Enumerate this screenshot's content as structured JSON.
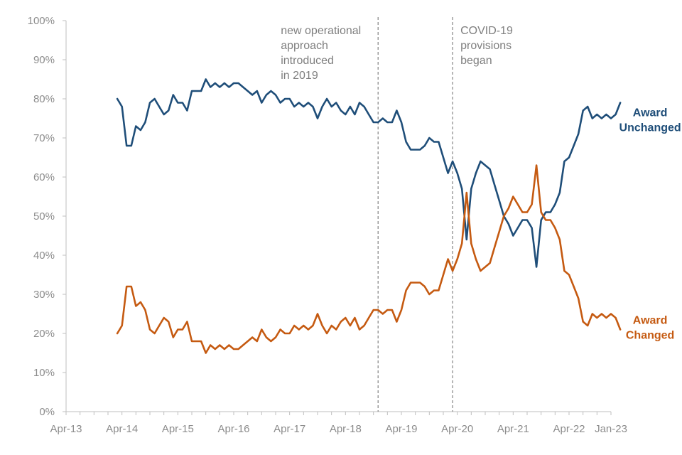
{
  "chart_data": {
    "type": "line",
    "title": "",
    "xlabel": "",
    "ylabel": "",
    "x_tick_labels": [
      "Apr-13",
      "Apr-14",
      "Apr-15",
      "Apr-16",
      "Apr-17",
      "Apr-18",
      "Apr-19",
      "Apr-20",
      "Apr-21",
      "Apr-22",
      "Jan-23"
    ],
    "y_tick_labels": [
      "0%",
      "10%",
      "20%",
      "30%",
      "40%",
      "50%",
      "60%",
      "70%",
      "80%",
      "90%",
      "100%"
    ],
    "ylim": [
      0,
      100
    ],
    "xlim": [
      "2013-04",
      "2023-01"
    ],
    "grid": false,
    "annotations": [
      {
        "date": "2018-11",
        "lines": [
          "new operational",
          "approach",
          "introduced",
          "in 2019"
        ]
      },
      {
        "date": "2020-03",
        "lines": [
          "COVID-19",
          "provisions",
          "began"
        ]
      }
    ],
    "series": [
      {
        "name": "Award Unchanged",
        "label_lines": [
          "Award",
          "Unchanged"
        ],
        "color": "#1f4e79",
        "points": [
          [
            "2014-03",
            80
          ],
          [
            "2014-04",
            78
          ],
          [
            "2014-05",
            68
          ],
          [
            "2014-06",
            68
          ],
          [
            "2014-07",
            73
          ],
          [
            "2014-08",
            72
          ],
          [
            "2014-09",
            74
          ],
          [
            "2014-10",
            79
          ],
          [
            "2014-11",
            80
          ],
          [
            "2014-12",
            78
          ],
          [
            "2015-01",
            76
          ],
          [
            "2015-02",
            77
          ],
          [
            "2015-03",
            81
          ],
          [
            "2015-04",
            79
          ],
          [
            "2015-05",
            79
          ],
          [
            "2015-06",
            77
          ],
          [
            "2015-07",
            82
          ],
          [
            "2015-08",
            82
          ],
          [
            "2015-09",
            82
          ],
          [
            "2015-10",
            85
          ],
          [
            "2015-11",
            83
          ],
          [
            "2015-12",
            84
          ],
          [
            "2016-01",
            83
          ],
          [
            "2016-02",
            84
          ],
          [
            "2016-03",
            83
          ],
          [
            "2016-04",
            84
          ],
          [
            "2016-05",
            84
          ],
          [
            "2016-06",
            83
          ],
          [
            "2016-07",
            82
          ],
          [
            "2016-08",
            81
          ],
          [
            "2016-09",
            82
          ],
          [
            "2016-10",
            79
          ],
          [
            "2016-11",
            81
          ],
          [
            "2016-12",
            82
          ],
          [
            "2017-01",
            81
          ],
          [
            "2017-02",
            79
          ],
          [
            "2017-03",
            80
          ],
          [
            "2017-04",
            80
          ],
          [
            "2017-05",
            78
          ],
          [
            "2017-06",
            79
          ],
          [
            "2017-07",
            78
          ],
          [
            "2017-08",
            79
          ],
          [
            "2017-09",
            78
          ],
          [
            "2017-10",
            75
          ],
          [
            "2017-11",
            78
          ],
          [
            "2017-12",
            80
          ],
          [
            "2018-01",
            78
          ],
          [
            "2018-02",
            79
          ],
          [
            "2018-03",
            77
          ],
          [
            "2018-04",
            76
          ],
          [
            "2018-05",
            78
          ],
          [
            "2018-06",
            76
          ],
          [
            "2018-07",
            79
          ],
          [
            "2018-08",
            78
          ],
          [
            "2018-09",
            76
          ],
          [
            "2018-10",
            74
          ],
          [
            "2018-11",
            74
          ],
          [
            "2018-12",
            75
          ],
          [
            "2019-01",
            74
          ],
          [
            "2019-02",
            74
          ],
          [
            "2019-03",
            77
          ],
          [
            "2019-04",
            74
          ],
          [
            "2019-05",
            69
          ],
          [
            "2019-06",
            67
          ],
          [
            "2019-07",
            67
          ],
          [
            "2019-08",
            67
          ],
          [
            "2019-09",
            68
          ],
          [
            "2019-10",
            70
          ],
          [
            "2019-11",
            69
          ],
          [
            "2019-12",
            69
          ],
          [
            "2020-01",
            65
          ],
          [
            "2020-02",
            61
          ],
          [
            "2020-03",
            64
          ],
          [
            "2020-04",
            61
          ],
          [
            "2020-05",
            57
          ],
          [
            "2020-06",
            44
          ],
          [
            "2020-07",
            57
          ],
          [
            "2020-08",
            61
          ],
          [
            "2020-09",
            64
          ],
          [
            "2020-10",
            63
          ],
          [
            "2020-11",
            62
          ],
          [
            "2020-12",
            58
          ],
          [
            "2021-01",
            54
          ],
          [
            "2021-02",
            50
          ],
          [
            "2021-03",
            48
          ],
          [
            "2021-04",
            45
          ],
          [
            "2021-05",
            47
          ],
          [
            "2021-06",
            49
          ],
          [
            "2021-07",
            49
          ],
          [
            "2021-08",
            47
          ],
          [
            "2021-09",
            37
          ],
          [
            "2021-10",
            49
          ],
          [
            "2021-11",
            51
          ],
          [
            "2021-12",
            51
          ],
          [
            "2022-01",
            53
          ],
          [
            "2022-02",
            56
          ],
          [
            "2022-03",
            64
          ],
          [
            "2022-04",
            65
          ],
          [
            "2022-05",
            68
          ],
          [
            "2022-06",
            71
          ],
          [
            "2022-07",
            77
          ],
          [
            "2022-08",
            78
          ],
          [
            "2022-09",
            75
          ],
          [
            "2022-10",
            76
          ],
          [
            "2022-11",
            75
          ],
          [
            "2022-12",
            76
          ],
          [
            "2023-01",
            75
          ],
          [
            "2023-02",
            76
          ],
          [
            "2023-03",
            79
          ]
        ]
      },
      {
        "name": "Award Changed",
        "label_lines": [
          "Award",
          "Changed"
        ],
        "color": "#c55a11",
        "points": [
          [
            "2014-03",
            20
          ],
          [
            "2014-04",
            22
          ],
          [
            "2014-05",
            32
          ],
          [
            "2014-06",
            32
          ],
          [
            "2014-07",
            27
          ],
          [
            "2014-08",
            28
          ],
          [
            "2014-09",
            26
          ],
          [
            "2014-10",
            21
          ],
          [
            "2014-11",
            20
          ],
          [
            "2014-12",
            22
          ],
          [
            "2015-01",
            24
          ],
          [
            "2015-02",
            23
          ],
          [
            "2015-03",
            19
          ],
          [
            "2015-04",
            21
          ],
          [
            "2015-05",
            21
          ],
          [
            "2015-06",
            23
          ],
          [
            "2015-07",
            18
          ],
          [
            "2015-08",
            18
          ],
          [
            "2015-09",
            18
          ],
          [
            "2015-10",
            15
          ],
          [
            "2015-11",
            17
          ],
          [
            "2015-12",
            16
          ],
          [
            "2016-01",
            17
          ],
          [
            "2016-02",
            16
          ],
          [
            "2016-03",
            17
          ],
          [
            "2016-04",
            16
          ],
          [
            "2016-05",
            16
          ],
          [
            "2016-06",
            17
          ],
          [
            "2016-07",
            18
          ],
          [
            "2016-08",
            19
          ],
          [
            "2016-09",
            18
          ],
          [
            "2016-10",
            21
          ],
          [
            "2016-11",
            19
          ],
          [
            "2016-12",
            18
          ],
          [
            "2017-01",
            19
          ],
          [
            "2017-02",
            21
          ],
          [
            "2017-03",
            20
          ],
          [
            "2017-04",
            20
          ],
          [
            "2017-05",
            22
          ],
          [
            "2017-06",
            21
          ],
          [
            "2017-07",
            22
          ],
          [
            "2017-08",
            21
          ],
          [
            "2017-09",
            22
          ],
          [
            "2017-10",
            25
          ],
          [
            "2017-11",
            22
          ],
          [
            "2017-12",
            20
          ],
          [
            "2018-01",
            22
          ],
          [
            "2018-02",
            21
          ],
          [
            "2018-03",
            23
          ],
          [
            "2018-04",
            24
          ],
          [
            "2018-05",
            22
          ],
          [
            "2018-06",
            24
          ],
          [
            "2018-07",
            21
          ],
          [
            "2018-08",
            22
          ],
          [
            "2018-09",
            24
          ],
          [
            "2018-10",
            26
          ],
          [
            "2018-11",
            26
          ],
          [
            "2018-12",
            25
          ],
          [
            "2019-01",
            26
          ],
          [
            "2019-02",
            26
          ],
          [
            "2019-03",
            23
          ],
          [
            "2019-04",
            26
          ],
          [
            "2019-05",
            31
          ],
          [
            "2019-06",
            33
          ],
          [
            "2019-07",
            33
          ],
          [
            "2019-08",
            33
          ],
          [
            "2019-09",
            32
          ],
          [
            "2019-10",
            30
          ],
          [
            "2019-11",
            31
          ],
          [
            "2019-12",
            31
          ],
          [
            "2020-01",
            35
          ],
          [
            "2020-02",
            39
          ],
          [
            "2020-03",
            36
          ],
          [
            "2020-04",
            39
          ],
          [
            "2020-05",
            43
          ],
          [
            "2020-06",
            56
          ],
          [
            "2020-07",
            43
          ],
          [
            "2020-08",
            39
          ],
          [
            "2020-09",
            36
          ],
          [
            "2020-10",
            37
          ],
          [
            "2020-11",
            38
          ],
          [
            "2020-12",
            42
          ],
          [
            "2021-01",
            46
          ],
          [
            "2021-02",
            50
          ],
          [
            "2021-03",
            52
          ],
          [
            "2021-04",
            55
          ],
          [
            "2021-05",
            53
          ],
          [
            "2021-06",
            51
          ],
          [
            "2021-07",
            51
          ],
          [
            "2021-08",
            53
          ],
          [
            "2021-09",
            63
          ],
          [
            "2021-10",
            51
          ],
          [
            "2021-11",
            49
          ],
          [
            "2021-12",
            49
          ],
          [
            "2022-01",
            47
          ],
          [
            "2022-02",
            44
          ],
          [
            "2022-03",
            36
          ],
          [
            "2022-04",
            35
          ],
          [
            "2022-05",
            32
          ],
          [
            "2022-06",
            29
          ],
          [
            "2022-07",
            23
          ],
          [
            "2022-08",
            22
          ],
          [
            "2022-09",
            25
          ],
          [
            "2022-10",
            24
          ],
          [
            "2022-11",
            25
          ],
          [
            "2022-12",
            24
          ],
          [
            "2023-01",
            25
          ],
          [
            "2023-02",
            24
          ],
          [
            "2023-03",
            21
          ]
        ]
      }
    ]
  }
}
